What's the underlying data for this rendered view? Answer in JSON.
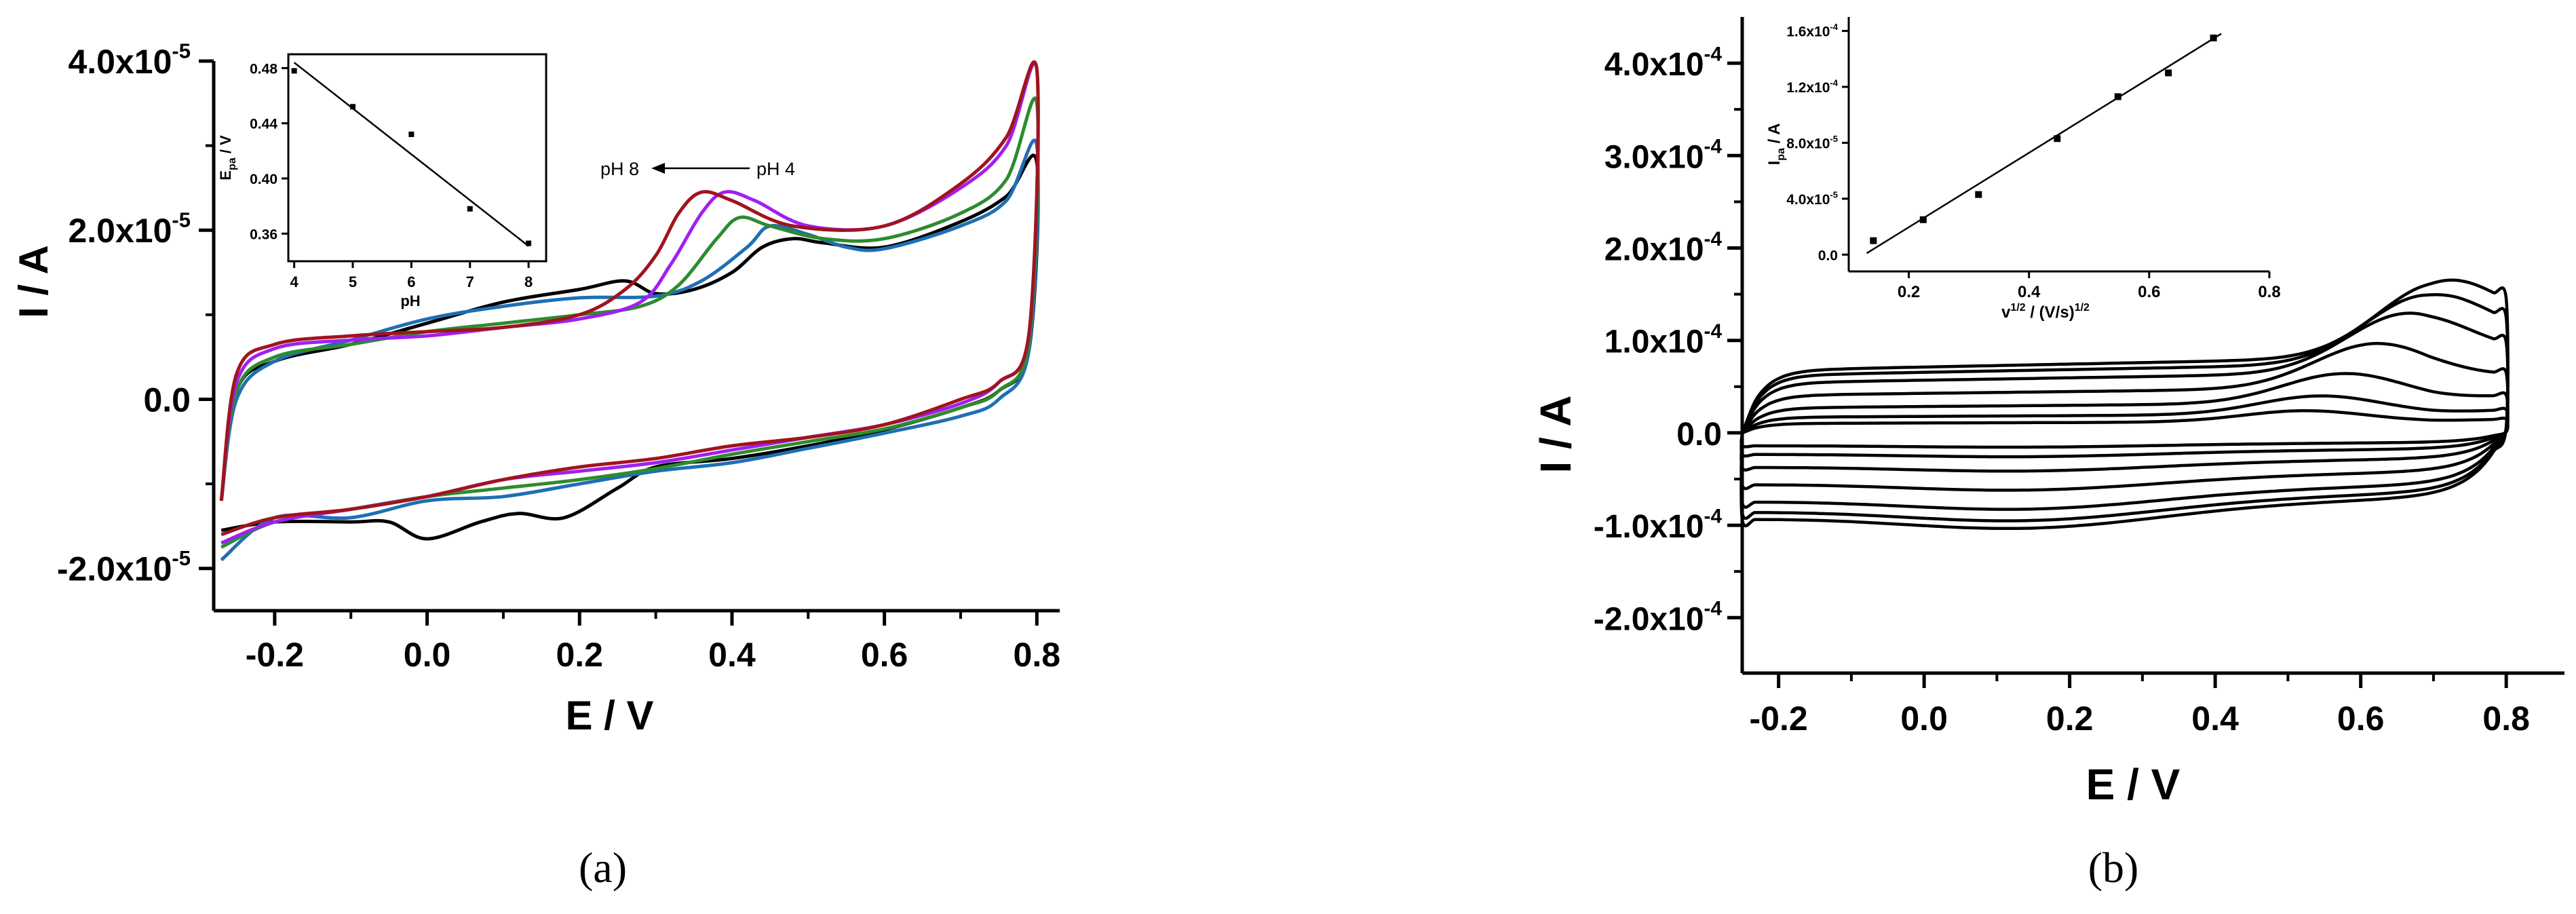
{
  "chart_data": [
    {
      "panel": "(a)",
      "type": "line",
      "xlabel": "E / V",
      "ylabel": "I / A",
      "xlim": [
        -0.28,
        0.83
      ],
      "ylim": [
        -2.5e-05,
        4e-05
      ],
      "xticks": [
        -0.2,
        0.0,
        0.2,
        0.4,
        0.6,
        0.8
      ],
      "xtick_labels": [
        "-0.2",
        "0.0",
        "0.2",
        "0.4",
        "0.6",
        "0.8"
      ],
      "yticks": [
        -2e-05,
        0,
        2e-05,
        4e-05
      ],
      "ytick_labels": [
        {
          "mant": "-2.0x10",
          "exp": "-5"
        },
        {
          "mant": "0.0",
          "exp": ""
        },
        {
          "mant": "2.0x10",
          "exp": "-5"
        },
        {
          "mant": "4.0x10",
          "exp": "-5"
        }
      ],
      "annotation": {
        "left": "pH 8",
        "right": "pH 4"
      },
      "series": [
        {
          "color": "#000000",
          "anodic": [
            [
              -0.27,
              -1.2e-05
            ],
            [
              -0.25,
              1e-06
            ],
            [
              -0.2,
              4.5e-06
            ],
            [
              -0.1,
              6.5e-06
            ],
            [
              0.0,
              9e-06
            ],
            [
              0.1,
              1.15e-05
            ],
            [
              0.2,
              1.3e-05
            ],
            [
              0.26,
              1.4e-05
            ],
            [
              0.3,
              1.25e-05
            ],
            [
              0.35,
              1.3e-05
            ],
            [
              0.4,
              1.5e-05
            ],
            [
              0.44,
              1.8e-05
            ],
            [
              0.48,
              1.9e-05
            ],
            [
              0.52,
              1.85e-05
            ],
            [
              0.6,
              1.8e-05
            ],
            [
              0.7,
              2.1e-05
            ],
            [
              0.76,
              2.4e-05
            ],
            [
              0.8,
              2.8e-05
            ]
          ],
          "cathodic": [
            [
              0.8,
              2.8e-05
            ],
            [
              0.79,
              6e-06
            ],
            [
              0.75,
              1e-06
            ],
            [
              0.7,
              -1e-06
            ],
            [
              0.6,
              -3.6e-06
            ],
            [
              0.5,
              -5.5e-06
            ],
            [
              0.4,
              -7e-06
            ],
            [
              0.3,
              -8e-06
            ],
            [
              0.25,
              -1.05e-05
            ],
            [
              0.18,
              -1.4e-05
            ],
            [
              0.12,
              -1.35e-05
            ],
            [
              0.07,
              -1.45e-05
            ],
            [
              0.0,
              -1.65e-05
            ],
            [
              -0.05,
              -1.45e-05
            ],
            [
              -0.1,
              -1.45e-05
            ],
            [
              -0.2,
              -1.45e-05
            ],
            [
              -0.27,
              -1.55e-05
            ]
          ]
        },
        {
          "color": "#1f6fb4",
          "anodic": [
            [
              -0.27,
              -1.2e-05
            ],
            [
              -0.25,
              0
            ],
            [
              -0.2,
              4.5e-06
            ],
            [
              -0.1,
              7e-06
            ],
            [
              0.0,
              9.5e-06
            ],
            [
              0.1,
              1.1e-05
            ],
            [
              0.2,
              1.2e-05
            ],
            [
              0.3,
              1.22e-05
            ],
            [
              0.36,
              1.4e-05
            ],
            [
              0.42,
              1.8e-05
            ],
            [
              0.45,
              2.05e-05
            ],
            [
              0.5,
              1.95e-05
            ],
            [
              0.55,
              1.8e-05
            ],
            [
              0.6,
              1.78e-05
            ],
            [
              0.7,
              2.05e-05
            ],
            [
              0.76,
              2.35e-05
            ],
            [
              0.8,
              3e-05
            ]
          ],
          "cathodic": [
            [
              0.8,
              3e-05
            ],
            [
              0.79,
              6e-06
            ],
            [
              0.75,
              0
            ],
            [
              0.7,
              -2e-06
            ],
            [
              0.6,
              -4e-06
            ],
            [
              0.5,
              -5.8e-06
            ],
            [
              0.4,
              -7.5e-06
            ],
            [
              0.3,
              -8.5e-06
            ],
            [
              0.2,
              -1e-05
            ],
            [
              0.1,
              -1.15e-05
            ],
            [
              0.0,
              -1.2e-05
            ],
            [
              -0.1,
              -1.4e-05
            ],
            [
              -0.2,
              -1.4e-05
            ],
            [
              -0.27,
              -1.9e-05
            ]
          ]
        },
        {
          "color": "#2e8b2e",
          "anodic": [
            [
              -0.27,
              -1.2e-05
            ],
            [
              -0.25,
              1e-06
            ],
            [
              -0.2,
              5e-06
            ],
            [
              -0.1,
              6.5e-06
            ],
            [
              0.0,
              8e-06
            ],
            [
              0.1,
              9e-06
            ],
            [
              0.2,
              1e-05
            ],
            [
              0.28,
              1.1e-05
            ],
            [
              0.33,
              1.35e-05
            ],
            [
              0.38,
              1.9e-05
            ],
            [
              0.41,
              2.15e-05
            ],
            [
              0.45,
              2.05e-05
            ],
            [
              0.52,
              1.9e-05
            ],
            [
              0.6,
              1.9e-05
            ],
            [
              0.7,
              2.2e-05
            ],
            [
              0.76,
              2.6e-05
            ],
            [
              0.8,
              3.5e-05
            ]
          ],
          "cathodic": [
            [
              0.8,
              3.5e-05
            ],
            [
              0.79,
              7e-06
            ],
            [
              0.75,
              1e-06
            ],
            [
              0.7,
              -1e-06
            ],
            [
              0.6,
              -3.5e-06
            ],
            [
              0.5,
              -5e-06
            ],
            [
              0.4,
              -6.5e-06
            ],
            [
              0.3,
              -8.2e-06
            ],
            [
              0.2,
              -9.5e-06
            ],
            [
              0.1,
              -1.05e-05
            ],
            [
              0.0,
              -1.15e-05
            ],
            [
              -0.1,
              -1.3e-05
            ],
            [
              -0.2,
              -1.45e-05
            ],
            [
              -0.27,
              -1.75e-05
            ]
          ]
        },
        {
          "color": "#a020f0",
          "anodic": [
            [
              -0.27,
              -1.2e-05
            ],
            [
              -0.25,
              2e-06
            ],
            [
              -0.2,
              6e-06
            ],
            [
              -0.1,
              7e-06
            ],
            [
              0.0,
              7.5e-06
            ],
            [
              0.1,
              8.5e-06
            ],
            [
              0.2,
              9.5e-06
            ],
            [
              0.28,
              1.15e-05
            ],
            [
              0.32,
              1.6e-05
            ],
            [
              0.36,
              2.2e-05
            ],
            [
              0.39,
              2.45e-05
            ],
            [
              0.43,
              2.35e-05
            ],
            [
              0.5,
              2.05e-05
            ],
            [
              0.6,
              2.05e-05
            ],
            [
              0.7,
              2.5e-05
            ],
            [
              0.76,
              3e-05
            ],
            [
              0.8,
              3.9e-05
            ]
          ],
          "cathodic": [
            [
              0.8,
              3.9e-05
            ],
            [
              0.79,
              8e-06
            ],
            [
              0.75,
              2e-06
            ],
            [
              0.7,
              -5e-07
            ],
            [
              0.6,
              -3e-06
            ],
            [
              0.5,
              -4.5e-06
            ],
            [
              0.4,
              -6e-06
            ],
            [
              0.3,
              -7.5e-06
            ],
            [
              0.2,
              -8.5e-06
            ],
            [
              0.1,
              -9.5e-06
            ],
            [
              0.0,
              -1.15e-05
            ],
            [
              -0.1,
              -1.3e-05
            ],
            [
              -0.2,
              -1.45e-05
            ],
            [
              -0.27,
              -1.7e-05
            ]
          ]
        },
        {
          "color": "#a0141e",
          "anodic": [
            [
              -0.27,
              -1.2e-05
            ],
            [
              -0.25,
              3e-06
            ],
            [
              -0.2,
              6.5e-06
            ],
            [
              -0.1,
              7.5e-06
            ],
            [
              0.0,
              8e-06
            ],
            [
              0.1,
              8.5e-06
            ],
            [
              0.2,
              1e-05
            ],
            [
              0.26,
              1.3e-05
            ],
            [
              0.3,
              1.7e-05
            ],
            [
              0.33,
              2.2e-05
            ],
            [
              0.36,
              2.45e-05
            ],
            [
              0.4,
              2.35e-05
            ],
            [
              0.48,
              2.05e-05
            ],
            [
              0.6,
              2.05e-05
            ],
            [
              0.7,
              2.55e-05
            ],
            [
              0.76,
              3.1e-05
            ],
            [
              0.8,
              3.9e-05
            ]
          ],
          "cathodic": [
            [
              0.8,
              3.9e-05
            ],
            [
              0.79,
              8e-06
            ],
            [
              0.75,
              2e-06
            ],
            [
              0.7,
              0
            ],
            [
              0.6,
              -3e-06
            ],
            [
              0.5,
              -4.5e-06
            ],
            [
              0.4,
              -5.5e-06
            ],
            [
              0.3,
              -7e-06
            ],
            [
              0.2,
              -8e-06
            ],
            [
              0.1,
              -9.5e-06
            ],
            [
              0.0,
              -1.15e-05
            ],
            [
              -0.1,
              -1.3e-05
            ],
            [
              -0.2,
              -1.4e-05
            ],
            [
              -0.27,
              -1.6e-05
            ]
          ]
        }
      ],
      "inset": {
        "type": "scatter",
        "xlabel": "pH",
        "ylabel_main": "E",
        "ylabel_sub": "pa",
        "ylabel_tail": " / V",
        "xlim": [
          3.9,
          8.3
        ],
        "ylim": [
          0.34,
          0.49
        ],
        "xticks": [
          4,
          5,
          6,
          7,
          8
        ],
        "xtick_labels": [
          "4",
          "5",
          "6",
          "7",
          "8"
        ],
        "yticks": [
          0.36,
          0.4,
          0.44,
          0.48
        ],
        "ytick_labels": [
          "0.36",
          "0.40",
          "0.44",
          "0.48"
        ],
        "points": [
          [
            4,
            0.478
          ],
          [
            5,
            0.452
          ],
          [
            6,
            0.432
          ],
          [
            7,
            0.378
          ],
          [
            8,
            0.353
          ]
        ],
        "fit": [
          [
            4,
            0.484
          ],
          [
            8,
            0.351
          ]
        ]
      }
    },
    {
      "panel": "(b)",
      "type": "line",
      "xlabel": "E / V",
      "ylabel": "I / A",
      "xlim": [
        -0.25,
        0.88
      ],
      "ylim": [
        -0.00026,
        0.00045
      ],
      "xticks": [
        -0.2,
        0.0,
        0.2,
        0.4,
        0.6,
        0.8
      ],
      "xtick_labels": [
        "-0.2",
        "0.0",
        "0.2",
        "0.4",
        "0.6",
        "0.8"
      ],
      "yticks": [
        -0.0002,
        -0.0001,
        0,
        0.0001,
        0.0002,
        0.0003,
        0.0004
      ],
      "ytick_labels": [
        {
          "mant": "-2.0x10",
          "exp": "-4"
        },
        {
          "mant": "-1.0x10",
          "exp": "-4"
        },
        {
          "mant": "0.0",
          "exp": ""
        },
        {
          "mant": "1.0x10",
          "exp": "-4"
        },
        {
          "mant": "2.0x10",
          "exp": "-4"
        },
        {
          "mant": "3.0x10",
          "exp": "-4"
        },
        {
          "mant": "4.0x10",
          "exp": "-4"
        }
      ],
      "series": [
        {
          "color": "#000000",
          "scale": 0.15
        },
        {
          "color": "#000000",
          "scale": 0.25
        },
        {
          "color": "#000000",
          "scale": 0.4
        },
        {
          "color": "#000000",
          "scale": 0.6
        },
        {
          "color": "#000000",
          "scale": 0.8
        },
        {
          "color": "#000000",
          "scale": 0.92
        },
        {
          "color": "#000000",
          "scale": 1.0
        }
      ],
      "inset": {
        "type": "scatter",
        "xlabel_main": "v",
        "xlabel_sup": "1/2",
        "xlabel_mid": " / (V/s)",
        "xlabel_sup2": "1/2",
        "ylabel_main": "I",
        "ylabel_sub": "pa",
        "ylabel_tail": " / A",
        "xlim": [
          0.1,
          0.8
        ],
        "ylim": [
          -1.2e-05,
          0.00017
        ],
        "xticks": [
          0.2,
          0.4,
          0.6,
          0.8
        ],
        "xtick_labels": [
          "0.2",
          "0.4",
          "0.6",
          "0.8"
        ],
        "yticks": [
          0,
          4e-05,
          8e-05,
          0.00012,
          0.00016
        ],
        "ytick_labels": [
          {
            "mant": "0.0",
            "exp": ""
          },
          {
            "mant": "4.0x10",
            "exp": "-5"
          },
          {
            "mant": "8.0x10",
            "exp": "-5"
          },
          {
            "mant": "1.2x10",
            "exp": "-4"
          },
          {
            "mant": "1.6x10",
            "exp": "-4"
          }
        ],
        "points": [
          [
            0.141,
            1e-05
          ],
          [
            0.224,
            2.5e-05
          ],
          [
            0.316,
            4.3e-05
          ],
          [
            0.447,
            8.3e-05
          ],
          [
            0.548,
            0.000113
          ],
          [
            0.632,
            0.00013
          ],
          [
            0.707,
            0.000155
          ]
        ],
        "fit": [
          [
            0.13,
            1e-06
          ],
          [
            0.72,
            0.000158
          ]
        ]
      }
    }
  ]
}
